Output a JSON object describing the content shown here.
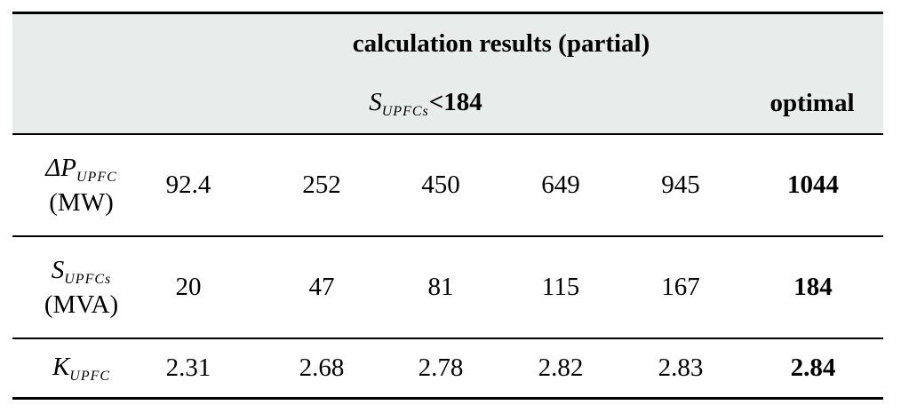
{
  "table": {
    "title": "calculation results (partial)",
    "constraint": {
      "symbol": "S",
      "subscript": "UPFCs",
      "relation": "<184"
    },
    "optimal_label": "optimal",
    "rows": [
      {
        "symbol": "ΔP",
        "subscript": "UPFC",
        "unit": "(MW)",
        "values": [
          "92.4",
          "252",
          "450",
          "649",
          "945"
        ],
        "optimal": "1044"
      },
      {
        "symbol": "S",
        "subscript": "UPFCs",
        "unit": "(MVA)",
        "values": [
          "20",
          "47",
          "81",
          "115",
          "167"
        ],
        "optimal": "184"
      },
      {
        "symbol": "K",
        "subscript": "UPFC",
        "unit": "",
        "values": [
          "2.31",
          "2.68",
          "2.78",
          "2.82",
          "2.83"
        ],
        "optimal": "2.84"
      }
    ]
  }
}
